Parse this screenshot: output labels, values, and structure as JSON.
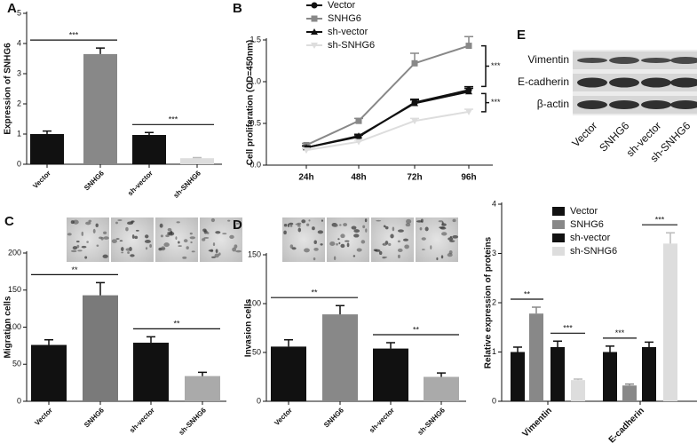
{
  "chart_data": [
    {
      "type": "bar",
      "panel": "A",
      "ylabel": "Expression of SNHG6",
      "categories": [
        "Vector",
        "SNHG6",
        "sh-vector",
        "sh-SNHG6"
      ],
      "values": [
        1.0,
        3.65,
        0.97,
        0.2
      ],
      "errors": [
        0.1,
        0.2,
        0.08,
        0.02
      ],
      "colors": [
        "#111111",
        "#888888",
        "#111111",
        "#dddddd"
      ],
      "ylim": [
        0,
        5
      ],
      "yticks": [
        0,
        1,
        2,
        3,
        4,
        5
      ],
      "annotations": [
        "***",
        "***"
      ]
    },
    {
      "type": "line",
      "panel": "B",
      "ylabel": "Cell proliferation (OD=450nm)",
      "categories": [
        "24h",
        "48h",
        "72h",
        "96h"
      ],
      "series": [
        {
          "name": "Vector",
          "color": "#111111",
          "marker": "circle",
          "values": [
            0.21,
            0.34,
            0.75,
            0.9
          ],
          "errors": [
            0.02,
            0.02,
            0.04,
            0.04
          ]
        },
        {
          "name": "SNHG6",
          "color": "#888888",
          "marker": "square",
          "values": [
            0.24,
            0.53,
            1.22,
            1.43
          ],
          "errors": [
            0.02,
            0.03,
            0.12,
            0.11
          ]
        },
        {
          "name": "sh-vector",
          "color": "#111111",
          "marker": "triangle",
          "values": [
            0.21,
            0.35,
            0.74,
            0.88
          ],
          "errors": [
            0.02,
            0.02,
            0.04,
            0.04
          ]
        },
        {
          "name": "sh-SNHG6",
          "color": "#dddddd",
          "marker": "triangle-down",
          "values": [
            0.18,
            0.28,
            0.53,
            0.64
          ],
          "errors": [
            0.02,
            0.02,
            0.03,
            0.03
          ]
        }
      ],
      "ylim": [
        0,
        1.5
      ],
      "yticks": [
        {
          "value": 0,
          "label": "0.0"
        },
        {
          "value": 0.5,
          "label": "0.5"
        },
        {
          "value": 1,
          "label": "1.0"
        },
        {
          "value": 1.5,
          "label": "1.5"
        }
      ],
      "annotations": [
        "***",
        "***"
      ]
    },
    {
      "type": "bar",
      "panel": "C",
      "ylabel": "Migration cells",
      "categories": [
        "Vector",
        "SNHG6",
        "sh-vector",
        "sh-SNHG6"
      ],
      "values": [
        76,
        143,
        79,
        34
      ],
      "errors": [
        7,
        17,
        8,
        5
      ],
      "colors": [
        "#111111",
        "#7a7a7a",
        "#111111",
        "#aaaaaa"
      ],
      "ylim": [
        0,
        200
      ],
      "yticks": [
        0,
        50,
        100,
        150,
        200
      ],
      "annotations": [
        "**",
        "**"
      ]
    },
    {
      "type": "bar",
      "panel": "D",
      "ylabel": "Invasion cells",
      "categories": [
        "Vector",
        "SNHG6",
        "sh-vector",
        "sh-SNHG6"
      ],
      "values": [
        56,
        89,
        54,
        25
      ],
      "errors": [
        7,
        9,
        6,
        4
      ],
      "colors": [
        "#111111",
        "#888888",
        "#111111",
        "#aaaaaa"
      ],
      "ylim": [
        0,
        150
      ],
      "yticks": [
        0,
        50,
        100,
        150
      ],
      "annotations": [
        "**",
        "**"
      ]
    },
    {
      "type": "blot",
      "panel": "E",
      "rows": [
        "Vimentin",
        "E-cadherin",
        "β-actin"
      ],
      "categories": [
        "Vector",
        "SNHG6",
        "sh-vector",
        "sh-SNHG6"
      ]
    },
    {
      "type": "grouped_bar",
      "ylabel": "Relative expression of proteins",
      "categories": [
        "Vimentin",
        "E-cadherin"
      ],
      "series": [
        {
          "name": "Vector",
          "color": "#111111",
          "values": [
            1.0,
            1.0
          ],
          "errors": [
            0.1,
            0.12
          ]
        },
        {
          "name": "SNHG6",
          "color": "#888888",
          "values": [
            1.78,
            0.32
          ],
          "errors": [
            0.13,
            0.03
          ]
        },
        {
          "name": "sh-vector",
          "color": "#111111",
          "values": [
            1.1,
            1.1
          ],
          "errors": [
            0.12,
            0.1
          ]
        },
        {
          "name": "sh-SNHG6",
          "color": "#dddddd",
          "values": [
            0.43,
            3.2
          ],
          "errors": [
            0.02,
            0.22
          ]
        }
      ],
      "ylim": [
        0,
        4
      ],
      "yticks": [
        0,
        1,
        2,
        3,
        4
      ],
      "annotations": [
        "**",
        "***",
        "***",
        "***"
      ]
    }
  ]
}
